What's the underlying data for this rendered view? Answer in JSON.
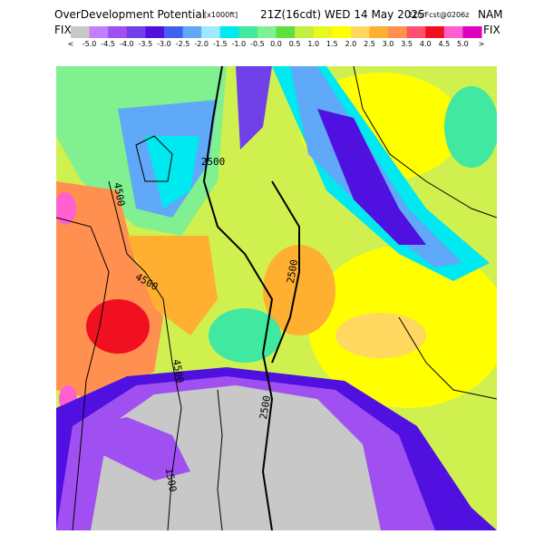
{
  "header": {
    "title": "OverDevelopment Potential",
    "units": "[x1000ft]",
    "valid": "21Z(16cdt) WED 14 May 2025",
    "run": "21hrFcst@0206z",
    "model": "NAM"
  },
  "colorbar": {
    "left_label": "FIX",
    "right_label": "FIX",
    "ticks": [
      "<",
      "-5.0",
      "-4.5",
      "-4.0",
      "-3.5",
      "-3.0",
      "-2.5",
      "-2.0",
      "-1.5",
      "-1.0",
      "-0.5",
      "0.0",
      "0.5",
      "1.0",
      "1.5",
      "2.0",
      "2.5",
      "3.0",
      "3.5",
      "4.0",
      "4.5",
      "5.0",
      ">"
    ],
    "colors": [
      "#c8c8c8",
      "#c080ff",
      "#a050f0",
      "#7040e8",
      "#5010e0",
      "#4060f0",
      "#60a8f8",
      "#a0e8ff",
      "#00e8f0",
      "#40e8a0",
      "#80f090",
      "#60e040",
      "#c0f040",
      "#e8f820",
      "#ffff00",
      "#ffd860",
      "#ffb030",
      "#ff9050",
      "#ff5070",
      "#f01020",
      "#ff60d0",
      "#e000c0"
    ]
  },
  "contour_labels": [
    "2500",
    "2500",
    "2500",
    "4500",
    "4500",
    "4500",
    "1500"
  ]
}
